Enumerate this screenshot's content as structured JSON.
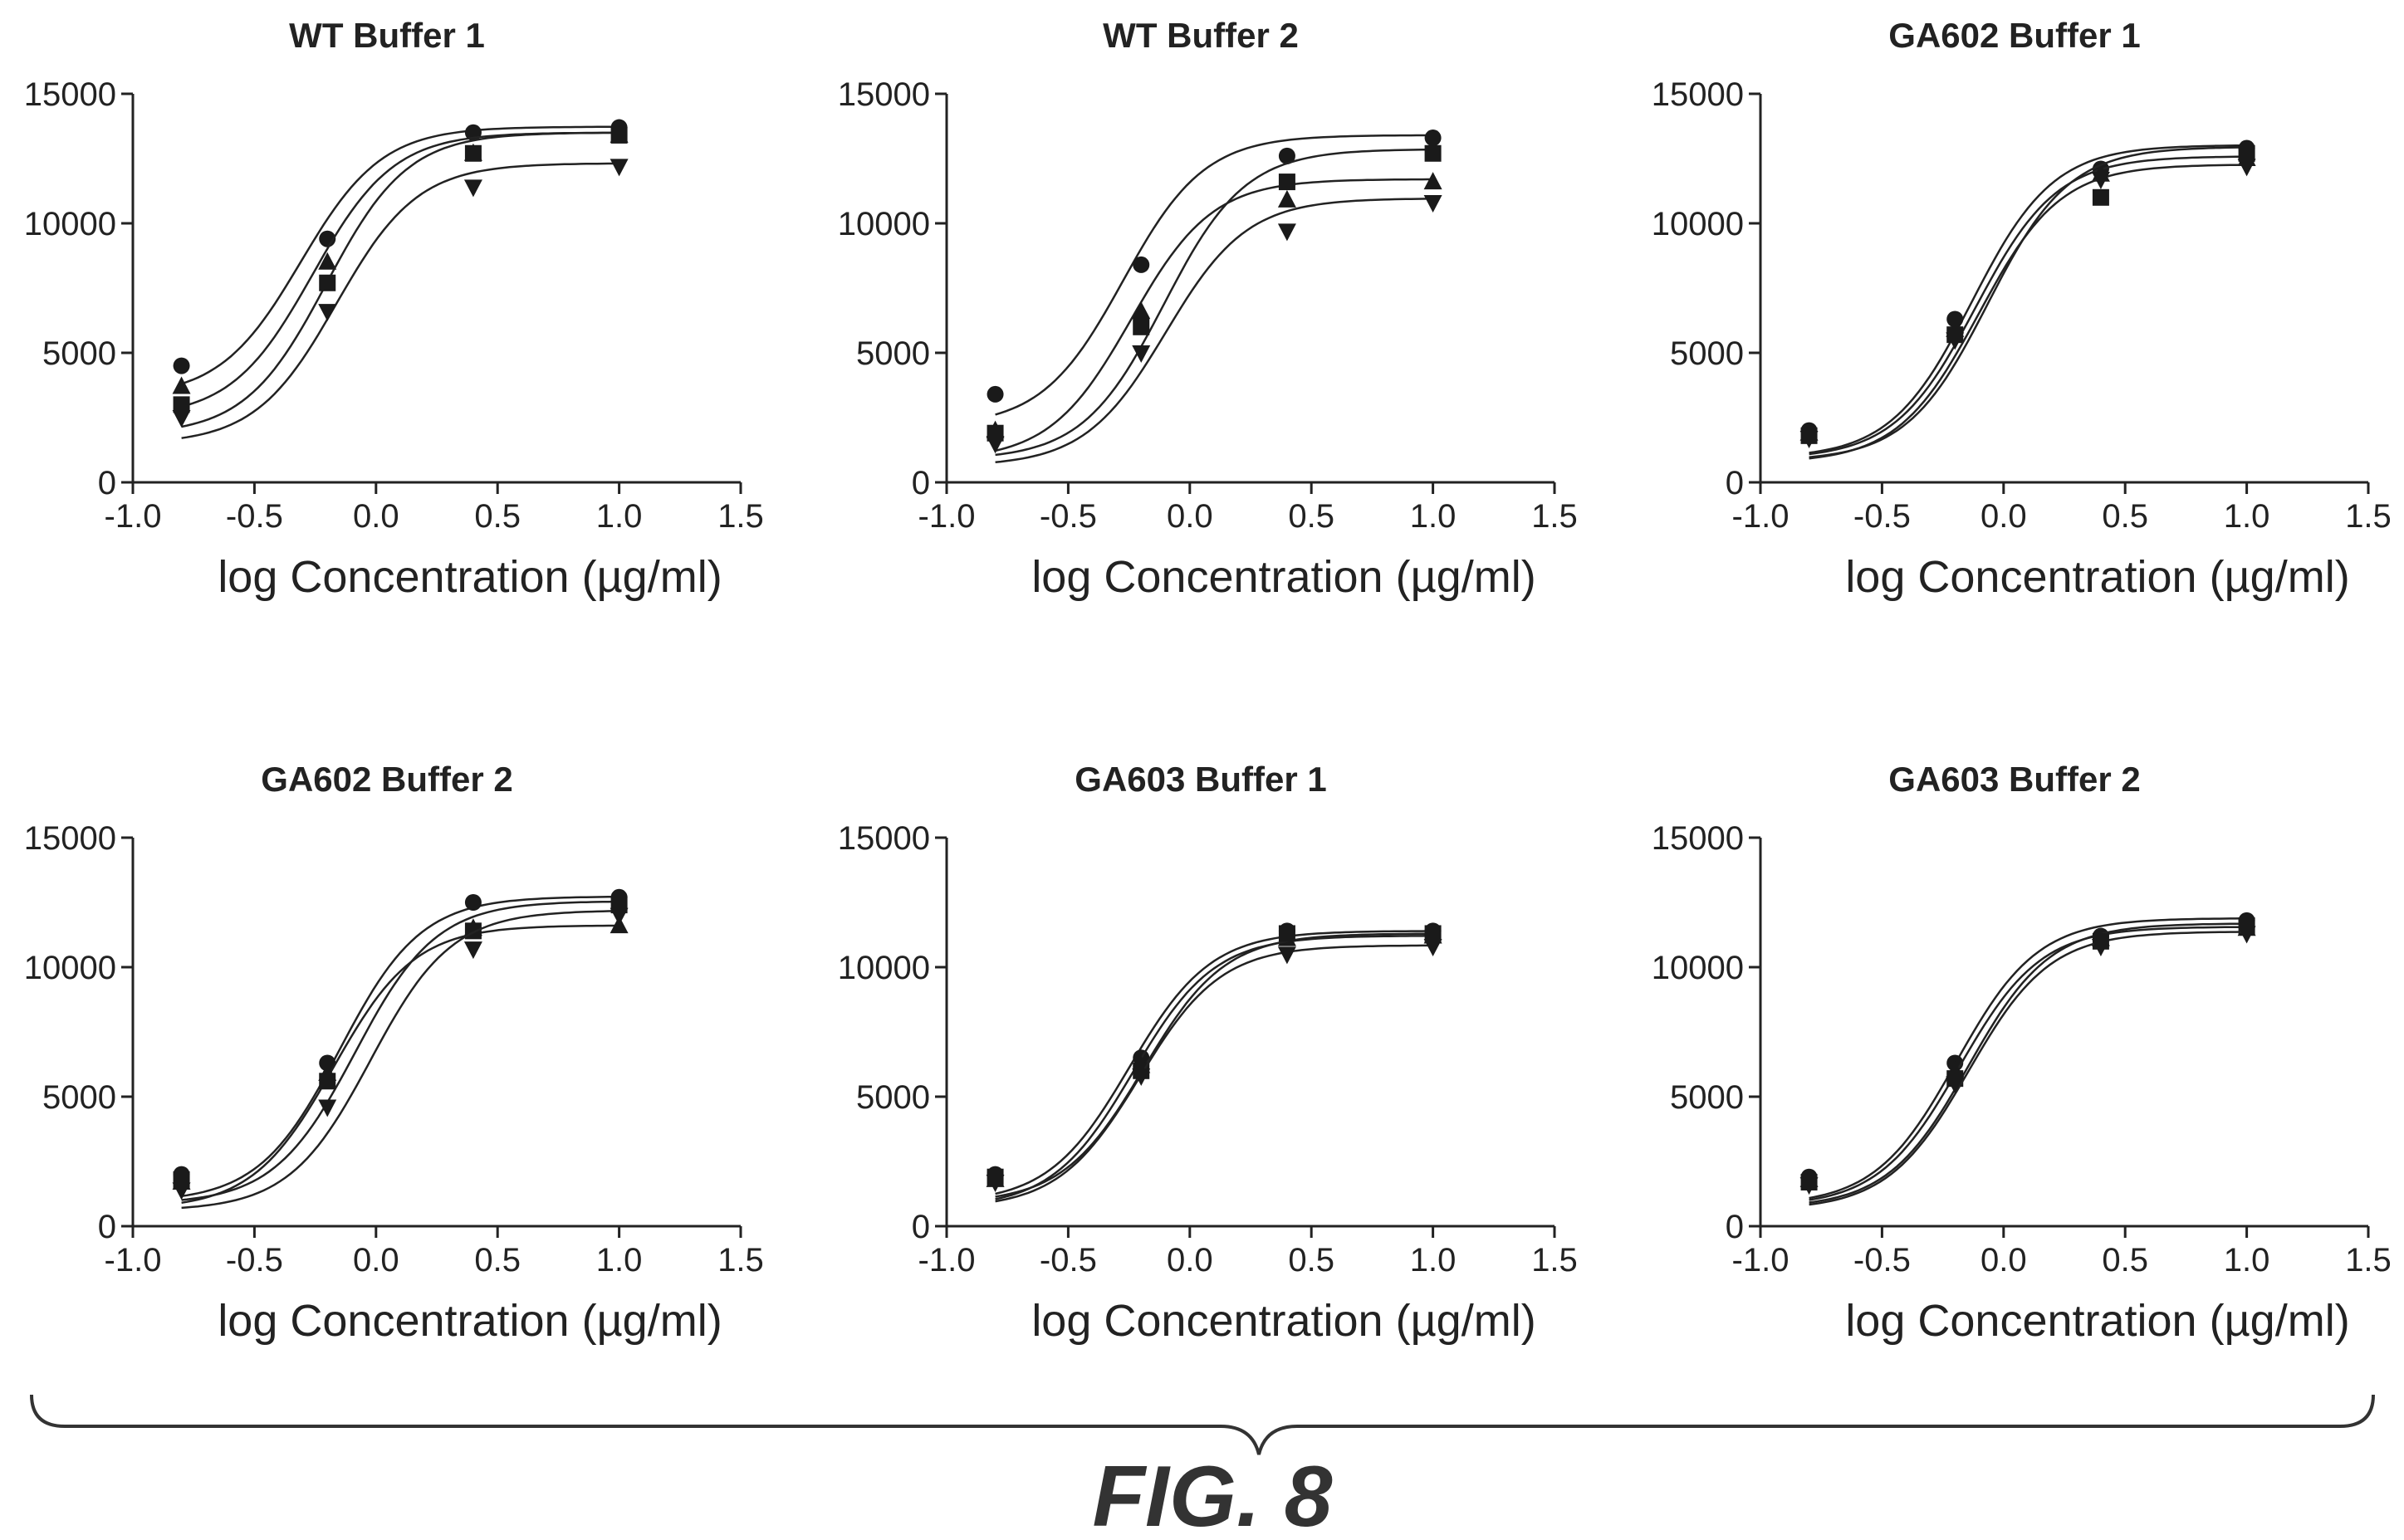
{
  "figure_label": "FIG. 8",
  "chart_data": [
    {
      "type": "scatter",
      "title": "WT Buffer 1",
      "xlabel": "log Concentration (µg/ml)",
      "ylabel": "",
      "xlim": [
        -1.0,
        1.5
      ],
      "ylim": [
        0,
        15000
      ],
      "x_ticks": [
        "-1.0",
        "-0.5",
        "0.0",
        "0.5",
        "1.0",
        "1.5"
      ],
      "y_ticks": [
        "0",
        "5000",
        "10000",
        "15000"
      ],
      "x": [
        -0.8,
        -0.2,
        0.4,
        1.0
      ],
      "series": [
        {
          "marker": "circle",
          "values": [
            4500,
            9400,
            13500,
            13700
          ]
        },
        {
          "marker": "triangle-up",
          "values": [
            3700,
            8500,
            12700,
            13400
          ]
        },
        {
          "marker": "square",
          "values": [
            3000,
            7700,
            12700,
            13400
          ]
        },
        {
          "marker": "triangle-down",
          "values": [
            2500,
            6600,
            11400,
            12200
          ]
        }
      ]
    },
    {
      "type": "scatter",
      "title": "WT Buffer 2",
      "xlabel": "log Concentration (µg/ml)",
      "ylabel": "",
      "xlim": [
        -1.0,
        1.5
      ],
      "ylim": [
        0,
        15000
      ],
      "x_ticks": [
        "-1.0",
        "-0.5",
        "0.0",
        "0.5",
        "1.0",
        "1.5"
      ],
      "y_ticks": [
        "0",
        "5000",
        "10000",
        "15000"
      ],
      "x": [
        -0.8,
        -0.2,
        0.4,
        1.0
      ],
      "series": [
        {
          "marker": "circle",
          "values": [
            3400,
            8400,
            12600,
            13300
          ]
        },
        {
          "marker": "triangle-up",
          "values": [
            2000,
            6600,
            10900,
            11600
          ]
        },
        {
          "marker": "square",
          "values": [
            1900,
            6000,
            11600,
            12700
          ]
        },
        {
          "marker": "triangle-down",
          "values": [
            1500,
            5000,
            9700,
            10800
          ]
        }
      ]
    },
    {
      "type": "scatter",
      "title": "GA602 Buffer 1",
      "xlabel": "log Concentration (µg/ml)",
      "ylabel": "",
      "xlim": [
        -1.0,
        1.5
      ],
      "ylim": [
        0,
        15000
      ],
      "x_ticks": [
        "-1.0",
        "-0.5",
        "0.0",
        "0.5",
        "1.0",
        "1.5"
      ],
      "y_ticks": [
        "0",
        "5000",
        "10000",
        "15000"
      ],
      "x": [
        -0.8,
        -0.2,
        0.4,
        1.0
      ],
      "series": [
        {
          "marker": "circle",
          "values": [
            2000,
            6300,
            12100,
            12900
          ]
        },
        {
          "marker": "triangle-up",
          "values": [
            1900,
            5900,
            11900,
            12500
          ]
        },
        {
          "marker": "square",
          "values": [
            1800,
            5700,
            11000,
            12700
          ]
        },
        {
          "marker": "triangle-down",
          "values": [
            1700,
            5500,
            11700,
            12200
          ]
        }
      ]
    },
    {
      "type": "scatter",
      "title": "GA602 Buffer 2",
      "xlabel": "log Concentration (µg/ml)",
      "ylabel": "",
      "xlim": [
        -1.0,
        1.5
      ],
      "ylim": [
        0,
        15000
      ],
      "x_ticks": [
        "-1.0",
        "-0.5",
        "0.0",
        "0.5",
        "1.0",
        "1.5"
      ],
      "y_ticks": [
        "0",
        "5000",
        "10000",
        "15000"
      ],
      "x": [
        -0.8,
        -0.2,
        0.4,
        1.0
      ],
      "series": [
        {
          "marker": "circle",
          "values": [
            2000,
            6300,
            12500,
            12700
          ]
        },
        {
          "marker": "triangle-up",
          "values": [
            1700,
            5900,
            11500,
            11600
          ]
        },
        {
          "marker": "square",
          "values": [
            1800,
            5600,
            11400,
            12400
          ]
        },
        {
          "marker": "triangle-down",
          "values": [
            1400,
            4600,
            10700,
            12000
          ]
        }
      ]
    },
    {
      "type": "scatter",
      "title": "GA603 Buffer 1",
      "xlabel": "log Concentration (µg/ml)",
      "ylabel": "",
      "xlim": [
        -1.0,
        1.5
      ],
      "ylim": [
        0,
        15000
      ],
      "x_ticks": [
        "-1.0",
        "-0.5",
        "0.0",
        "0.5",
        "1.0",
        "1.5"
      ],
      "y_ticks": [
        "0",
        "5000",
        "10000",
        "15000"
      ],
      "x": [
        -0.8,
        -0.2,
        0.4,
        1.0
      ],
      "series": [
        {
          "marker": "circle",
          "values": [
            2000,
            6500,
            11400,
            11400
          ]
        },
        {
          "marker": "triangle-up",
          "values": [
            1800,
            6200,
            11100,
            11200
          ]
        },
        {
          "marker": "square",
          "values": [
            1900,
            6000,
            11300,
            11300
          ]
        },
        {
          "marker": "triangle-down",
          "values": [
            1700,
            5800,
            10500,
            10800
          ]
        }
      ]
    },
    {
      "type": "scatter",
      "title": "GA603 Buffer 2",
      "xlabel": "log Concentration (µg/ml)",
      "ylabel": "",
      "xlim": [
        -1.0,
        1.5
      ],
      "ylim": [
        0,
        15000
      ],
      "x_ticks": [
        "-1.0",
        "-0.5",
        "0.0",
        "0.5",
        "1.0",
        "1.5"
      ],
      "y_ticks": [
        "0",
        "5000",
        "10000",
        "15000"
      ],
      "x": [
        -0.8,
        -0.2,
        0.4,
        1.0
      ],
      "series": [
        {
          "marker": "circle",
          "values": [
            1900,
            6300,
            11200,
            11800
          ]
        },
        {
          "marker": "triangle-up",
          "values": [
            1800,
            6000,
            11100,
            11500
          ]
        },
        {
          "marker": "square",
          "values": [
            1700,
            5700,
            11000,
            11600
          ]
        },
        {
          "marker": "triangle-down",
          "values": [
            1600,
            5500,
            10800,
            11300
          ]
        }
      ]
    }
  ]
}
